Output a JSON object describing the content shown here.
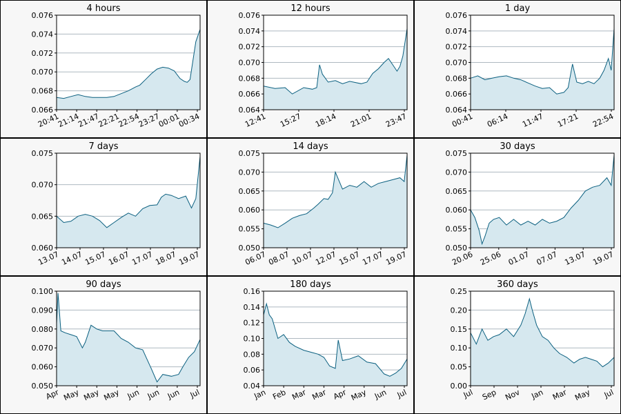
{
  "colors": {
    "line": "#0a5f7f",
    "fill": "#d6e8ef",
    "grid": "#aeb8c0",
    "plot_bg": "#ffffff",
    "panel_bg": "#f7f7f7"
  },
  "chart_data": [
    {
      "type": "area",
      "title": "4 hours",
      "ylim": [
        0.066,
        0.076
      ],
      "yticks": [
        "0.066",
        "0.068",
        "0.070",
        "0.072",
        "0.074",
        "0.076"
      ],
      "xtick_labels": [
        "20:41",
        "21:14",
        "21:47",
        "22:21",
        "22:54",
        "23:27",
        "00:01",
        "00:34"
      ],
      "x": [
        0,
        0.05,
        0.1,
        0.15,
        0.2,
        0.25,
        0.3,
        0.35,
        0.4,
        0.45,
        0.5,
        0.55,
        0.58,
        0.62,
        0.66,
        0.7,
        0.74,
        0.78,
        0.82,
        0.86,
        0.89,
        0.91,
        0.93,
        0.95,
        0.97,
        1.0
      ],
      "y": [
        0.0673,
        0.0672,
        0.0674,
        0.0676,
        0.0674,
        0.0673,
        0.0673,
        0.0673,
        0.0674,
        0.0677,
        0.068,
        0.0684,
        0.0686,
        0.0692,
        0.0698,
        0.0703,
        0.0705,
        0.0704,
        0.0701,
        0.0693,
        0.069,
        0.0689,
        0.0692,
        0.0712,
        0.0732,
        0.0745
      ]
    },
    {
      "type": "area",
      "title": "12 hours",
      "ylim": [
        0.064,
        0.076
      ],
      "yticks": [
        "0.064",
        "0.066",
        "0.068",
        "0.070",
        "0.072",
        "0.074",
        "0.076"
      ],
      "xtick_labels": [
        "12:41",
        "15:27",
        "18:14",
        "21:01",
        "23:47"
      ],
      "x": [
        0,
        0.08,
        0.15,
        0.2,
        0.28,
        0.34,
        0.37,
        0.39,
        0.41,
        0.45,
        0.5,
        0.55,
        0.6,
        0.68,
        0.72,
        0.76,
        0.8,
        0.84,
        0.87,
        0.9,
        0.93,
        0.95,
        0.97,
        1.0
      ],
      "y": [
        0.067,
        0.0667,
        0.0668,
        0.066,
        0.0668,
        0.0666,
        0.0668,
        0.0697,
        0.0685,
        0.0675,
        0.0677,
        0.0673,
        0.0676,
        0.0673,
        0.0675,
        0.0686,
        0.0692,
        0.07,
        0.0705,
        0.0697,
        0.0689,
        0.0695,
        0.0708,
        0.0743
      ]
    },
    {
      "type": "area",
      "title": "1 day",
      "ylim": [
        0.064,
        0.076
      ],
      "yticks": [
        "0.064",
        "0.066",
        "0.068",
        "0.070",
        "0.072",
        "0.074",
        "0.076"
      ],
      "xtick_labels": [
        "00:41",
        "06:14",
        "11:47",
        "17:21",
        "22:54"
      ],
      "x": [
        0,
        0.05,
        0.1,
        0.15,
        0.2,
        0.25,
        0.3,
        0.35,
        0.4,
        0.45,
        0.5,
        0.55,
        0.6,
        0.65,
        0.68,
        0.71,
        0.74,
        0.78,
        0.82,
        0.86,
        0.9,
        0.93,
        0.96,
        0.98,
        1.0
      ],
      "y": [
        0.068,
        0.0683,
        0.0678,
        0.068,
        0.0682,
        0.0683,
        0.068,
        0.0678,
        0.0674,
        0.067,
        0.0667,
        0.0668,
        0.066,
        0.0662,
        0.0668,
        0.0698,
        0.0675,
        0.0673,
        0.0676,
        0.0673,
        0.068,
        0.069,
        0.0705,
        0.069,
        0.0743
      ]
    },
    {
      "type": "area",
      "title": "7 days",
      "ylim": [
        0.06,
        0.075
      ],
      "yticks": [
        "0.060",
        "0.065",
        "0.070",
        "0.075"
      ],
      "xtick_labels": [
        "13.07",
        "14.07",
        "15.07",
        "16.07",
        "17.07",
        "18.07",
        "19.07"
      ],
      "x": [
        0,
        0.05,
        0.1,
        0.15,
        0.2,
        0.25,
        0.3,
        0.35,
        0.4,
        0.45,
        0.5,
        0.55,
        0.6,
        0.65,
        0.7,
        0.73,
        0.76,
        0.8,
        0.85,
        0.9,
        0.94,
        0.97,
        1.0
      ],
      "y": [
        0.065,
        0.064,
        0.0642,
        0.065,
        0.0653,
        0.065,
        0.0643,
        0.0632,
        0.064,
        0.0648,
        0.0655,
        0.065,
        0.0662,
        0.0667,
        0.0668,
        0.068,
        0.0685,
        0.0683,
        0.0678,
        0.0682,
        0.0663,
        0.0678,
        0.0745
      ]
    },
    {
      "type": "area",
      "title": "14 days",
      "ylim": [
        0.05,
        0.075
      ],
      "yticks": [
        "0.050",
        "0.055",
        "0.060",
        "0.065",
        "0.070",
        "0.075"
      ],
      "xtick_labels": [
        "06.07",
        "08.07",
        "10.07",
        "12.07",
        "15.07",
        "17.07",
        "19.07"
      ],
      "x": [
        0,
        0.05,
        0.1,
        0.15,
        0.2,
        0.25,
        0.3,
        0.35,
        0.38,
        0.42,
        0.45,
        0.48,
        0.5,
        0.55,
        0.6,
        0.65,
        0.7,
        0.75,
        0.8,
        0.85,
        0.9,
        0.95,
        0.98,
        1.0
      ],
      "y": [
        0.0565,
        0.056,
        0.0553,
        0.0565,
        0.0578,
        0.0585,
        0.059,
        0.0605,
        0.0615,
        0.063,
        0.0628,
        0.0645,
        0.07,
        0.0655,
        0.0665,
        0.066,
        0.0675,
        0.066,
        0.067,
        0.0675,
        0.068,
        0.0685,
        0.0675,
        0.0745
      ]
    },
    {
      "type": "area",
      "title": "30 days",
      "ylim": [
        0.05,
        0.075
      ],
      "yticks": [
        "0.050",
        "0.055",
        "0.060",
        "0.065",
        "0.070",
        "0.075"
      ],
      "xtick_labels": [
        "20.06",
        "25.06",
        "01.07",
        "07.07",
        "13.07",
        "19.07"
      ],
      "x": [
        0,
        0.03,
        0.06,
        0.08,
        0.1,
        0.13,
        0.16,
        0.2,
        0.25,
        0.3,
        0.35,
        0.4,
        0.45,
        0.5,
        0.55,
        0.6,
        0.65,
        0.7,
        0.75,
        0.8,
        0.85,
        0.9,
        0.95,
        0.98,
        1.0
      ],
      "y": [
        0.06,
        0.058,
        0.0545,
        0.051,
        0.053,
        0.0565,
        0.0575,
        0.058,
        0.056,
        0.0575,
        0.056,
        0.057,
        0.056,
        0.0575,
        0.0565,
        0.057,
        0.058,
        0.0605,
        0.0625,
        0.065,
        0.066,
        0.0665,
        0.0685,
        0.0665,
        0.0745
      ]
    },
    {
      "type": "area",
      "title": "90 days",
      "ylim": [
        0.05,
        0.1
      ],
      "yticks": [
        "0.050",
        "0.060",
        "0.070",
        "0.080",
        "0.090",
        "0.100"
      ],
      "xtick_labels": [
        "Apr",
        "May",
        "May",
        "May",
        "Jun",
        "Jun",
        "Jun",
        "Jul"
      ],
      "x": [
        0,
        0.01,
        0.03,
        0.06,
        0.1,
        0.14,
        0.18,
        0.2,
        0.24,
        0.28,
        0.32,
        0.36,
        0.4,
        0.45,
        0.5,
        0.55,
        0.6,
        0.63,
        0.66,
        0.7,
        0.74,
        0.8,
        0.85,
        0.88,
        0.92,
        0.96,
        1.0
      ],
      "y": [
        0.083,
        0.099,
        0.079,
        0.078,
        0.077,
        0.076,
        0.07,
        0.073,
        0.082,
        0.08,
        0.079,
        0.079,
        0.079,
        0.075,
        0.073,
        0.07,
        0.069,
        0.064,
        0.059,
        0.052,
        0.056,
        0.055,
        0.056,
        0.06,
        0.065,
        0.068,
        0.0745
      ]
    },
    {
      "type": "area",
      "title": "180 days",
      "ylim": [
        0.04,
        0.16
      ],
      "yticks": [
        "0.04",
        "0.06",
        "0.08",
        "0.10",
        "0.12",
        "0.14",
        "0.16"
      ],
      "xtick_labels": [
        "Jan",
        "Feb",
        "Mar",
        "Mar",
        "Apr",
        "May",
        "Jun",
        "Jul"
      ],
      "x": [
        0,
        0.02,
        0.04,
        0.06,
        0.1,
        0.14,
        0.18,
        0.22,
        0.28,
        0.34,
        0.38,
        0.42,
        0.46,
        0.5,
        0.52,
        0.55,
        0.6,
        0.66,
        0.72,
        0.78,
        0.84,
        0.88,
        0.92,
        0.96,
        1.0
      ],
      "y": [
        0.13,
        0.144,
        0.13,
        0.125,
        0.1,
        0.105,
        0.095,
        0.09,
        0.085,
        0.082,
        0.08,
        0.076,
        0.065,
        0.062,
        0.098,
        0.072,
        0.074,
        0.078,
        0.07,
        0.068,
        0.055,
        0.052,
        0.056,
        0.062,
        0.074
      ]
    },
    {
      "type": "area",
      "title": "360 days",
      "ylim": [
        0.0,
        0.25
      ],
      "yticks": [
        "0.00",
        "0.05",
        "0.10",
        "0.15",
        "0.20",
        "0.25"
      ],
      "xtick_labels": [
        "Jul",
        "Sep",
        "Nov",
        "Jan",
        "Mar",
        "May",
        "Jul"
      ],
      "x": [
        0,
        0.04,
        0.08,
        0.12,
        0.16,
        0.2,
        0.25,
        0.3,
        0.35,
        0.38,
        0.41,
        0.43,
        0.46,
        0.5,
        0.54,
        0.58,
        0.62,
        0.67,
        0.72,
        0.76,
        0.8,
        0.84,
        0.88,
        0.92,
        0.96,
        1.0
      ],
      "y": [
        0.14,
        0.11,
        0.15,
        0.12,
        0.13,
        0.135,
        0.15,
        0.13,
        0.16,
        0.19,
        0.23,
        0.2,
        0.16,
        0.13,
        0.12,
        0.1,
        0.085,
        0.075,
        0.06,
        0.07,
        0.075,
        0.07,
        0.065,
        0.05,
        0.06,
        0.075
      ]
    }
  ]
}
